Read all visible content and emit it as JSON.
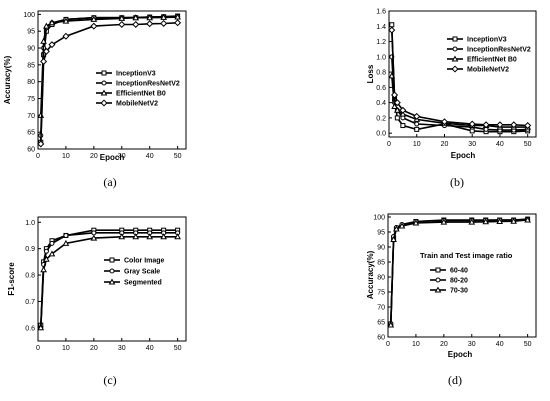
{
  "chart_data": [
    {
      "type": "line",
      "panel_label": "(a)",
      "xlabel": "Epoch",
      "ylabel": "Accuracy(%)",
      "xlim": [
        0,
        53
      ],
      "ylim": [
        60,
        101
      ],
      "xticks": [
        0,
        10,
        20,
        30,
        40,
        50
      ],
      "yticks": [
        60,
        65,
        70,
        75,
        80,
        85,
        90,
        95,
        100
      ],
      "legend_position": "center-right",
      "x": [
        1,
        2,
        3,
        5,
        10,
        20,
        30,
        35,
        40,
        45,
        50
      ],
      "series": [
        {
          "name": "InceptionV3",
          "marker": "square",
          "values": [
            62,
            88,
            95,
            97,
            98.5,
            99,
            99,
            99,
            99.2,
            99.3,
            99.5
          ]
        },
        {
          "name": "InceptionResNetV2",
          "marker": "circle",
          "values": [
            64,
            90,
            96,
            97.5,
            98.5,
            99,
            99,
            99.1,
            99.2,
            99.3,
            99.4
          ]
        },
        {
          "name": "EfficientNet B0",
          "marker": "triangle",
          "values": [
            70,
            92,
            96.5,
            97.5,
            98,
            98.5,
            98.8,
            99,
            99,
            99.1,
            99.2
          ]
        },
        {
          "name": "MobileNetV2",
          "marker": "diamond",
          "values": [
            61.5,
            86,
            89,
            91,
            93.5,
            96.5,
            97,
            97,
            97.2,
            97.3,
            97.5
          ]
        }
      ]
    },
    {
      "type": "line",
      "panel_label": "(b)",
      "xlabel": "Epoch",
      "ylabel": "Loss",
      "xlim": [
        0,
        53
      ],
      "ylim": [
        -0.05,
        1.6
      ],
      "xticks": [
        0,
        10,
        20,
        30,
        40,
        50
      ],
      "yticks": [
        0.0,
        0.2,
        0.4,
        0.6,
        0.8,
        1.0,
        1.2,
        1.4,
        1.6
      ],
      "ytick_labels": [
        "0.0",
        "0.2",
        "0.4",
        "0.6",
        "0.8",
        "1.0",
        "1.2",
        "1.4",
        "1.6"
      ],
      "legend_position": "top-right",
      "x": [
        1,
        2,
        3,
        5,
        10,
        20,
        30,
        35,
        40,
        45,
        50
      ],
      "series": [
        {
          "name": "InceptionV3",
          "marker": "square",
          "values": [
            1.42,
            0.45,
            0.2,
            0.1,
            0.05,
            0.12,
            0.03,
            0.02,
            0.02,
            0.02,
            0.03
          ]
        },
        {
          "name": "InceptionResNetV2",
          "marker": "circle",
          "values": [
            1.0,
            0.4,
            0.3,
            0.2,
            0.12,
            0.1,
            0.08,
            0.05,
            0.04,
            0.04,
            0.05
          ]
        },
        {
          "name": "EfficientNet B0",
          "marker": "triangle",
          "values": [
            0.75,
            0.35,
            0.3,
            0.25,
            0.18,
            0.13,
            0.1,
            0.1,
            0.08,
            0.08,
            0.08
          ]
        },
        {
          "name": "MobileNetV2",
          "marker": "diamond",
          "values": [
            1.35,
            0.5,
            0.4,
            0.3,
            0.22,
            0.15,
            0.12,
            0.11,
            0.11,
            0.11,
            0.1
          ]
        }
      ]
    },
    {
      "type": "line",
      "panel_label": "(c)",
      "xlabel": "",
      "ylabel": "F1-score",
      "xlim": [
        0,
        53
      ],
      "ylim": [
        0.55,
        1.02
      ],
      "xticks": [
        0,
        10,
        20,
        30,
        40,
        50
      ],
      "yticks": [
        0.6,
        0.7,
        0.8,
        0.9,
        1.0
      ],
      "ytick_labels": [
        "0.6",
        "0.7",
        "0.8",
        "0.9",
        "1.0"
      ],
      "legend_position": "center-right",
      "x": [
        1,
        2,
        3,
        5,
        10,
        20,
        30,
        35,
        40,
        45,
        50
      ],
      "series": [
        {
          "name": "Color Image",
          "marker": "square",
          "values": [
            0.61,
            0.85,
            0.9,
            0.93,
            0.95,
            0.97,
            0.97,
            0.97,
            0.97,
            0.97,
            0.97
          ]
        },
        {
          "name": "Gray Scale",
          "marker": "circle",
          "values": [
            0.6,
            0.84,
            0.89,
            0.92,
            0.95,
            0.96,
            0.96,
            0.96,
            0.96,
            0.96,
            0.96
          ]
        },
        {
          "name": "Segmented",
          "marker": "triangle",
          "values": [
            0.6,
            0.82,
            0.86,
            0.88,
            0.92,
            0.94,
            0.945,
            0.945,
            0.945,
            0.945,
            0.945
          ]
        }
      ]
    },
    {
      "type": "line",
      "panel_label": "(d)",
      "xlabel": "Epoch",
      "ylabel": "Accuracy(%)",
      "xlim": [
        0,
        53
      ],
      "ylim": [
        60,
        101
      ],
      "xticks": [
        0,
        10,
        20,
        30,
        40,
        50
      ],
      "yticks": [
        60,
        65,
        70,
        75,
        80,
        85,
        90,
        95,
        100
      ],
      "legend_title": "Train and Test image ratio",
      "legend_position": "center-right",
      "x": [
        1,
        2,
        3,
        5,
        10,
        20,
        30,
        35,
        40,
        45,
        50
      ],
      "series": [
        {
          "name": "60-40",
          "marker": "square",
          "values": [
            64,
            93,
            96,
            97,
            98.5,
            99,
            99,
            99,
            99,
            99,
            99.3
          ]
        },
        {
          "name": "80-20",
          "marker": "circle",
          "values": [
            64.5,
            93.5,
            96.5,
            97.5,
            98.5,
            98.8,
            98.8,
            98.9,
            99,
            99,
            99.2
          ]
        },
        {
          "name": "70-30",
          "marker": "triangle",
          "values": [
            64,
            92.5,
            96,
            97,
            98,
            98.3,
            98.3,
            98.4,
            98.5,
            98.6,
            99
          ]
        }
      ]
    }
  ]
}
